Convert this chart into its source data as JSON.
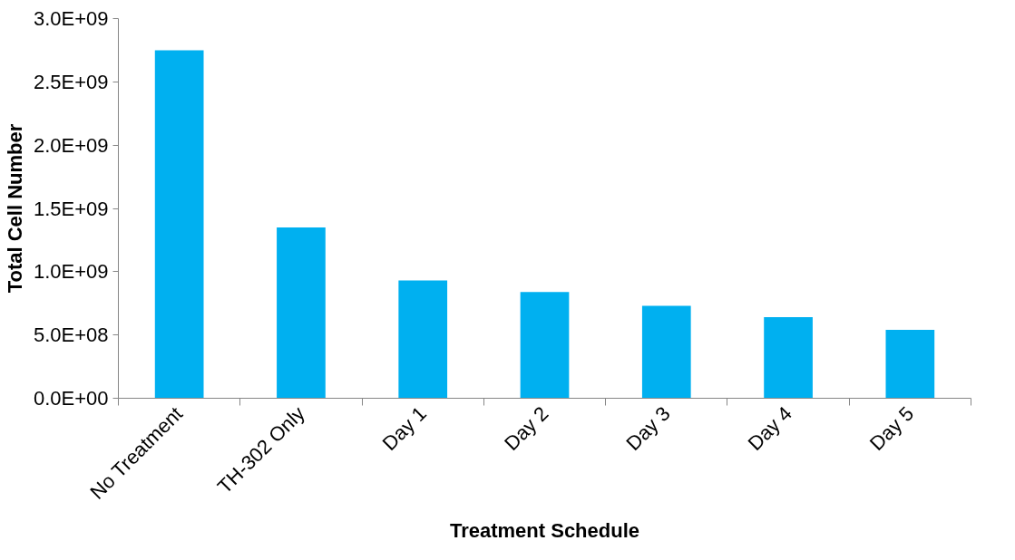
{
  "chart_data": {
    "type": "bar",
    "xlabel": "Treatment Schedule",
    "ylabel": "Total Cell Number",
    "categories": [
      "No Treatment",
      "TH-302 Only",
      "Day 1",
      "Day 2",
      "Day 3",
      "Day 4",
      "Day 5"
    ],
    "values": [
      2750000000.0,
      1350000000.0,
      930000000.0,
      840000000.0,
      730000000.0,
      640000000.0,
      540000000.0
    ],
    "color": "#00b0f0",
    "ylim": [
      0,
      3000000000.0
    ],
    "yticks": [
      {
        "value": 0,
        "label": "0.0E+00"
      },
      {
        "value": 500000000.0,
        "label": "5.0E+08"
      },
      {
        "value": 1000000000.0,
        "label": "1.0E+09"
      },
      {
        "value": 1500000000.0,
        "label": "1.5E+09"
      },
      {
        "value": 2000000000.0,
        "label": "2.0E+09"
      },
      {
        "value": 2500000000.0,
        "label": "2.5E+09"
      },
      {
        "value": 3000000000.0,
        "label": "3.0E+09"
      }
    ],
    "grid": false
  }
}
